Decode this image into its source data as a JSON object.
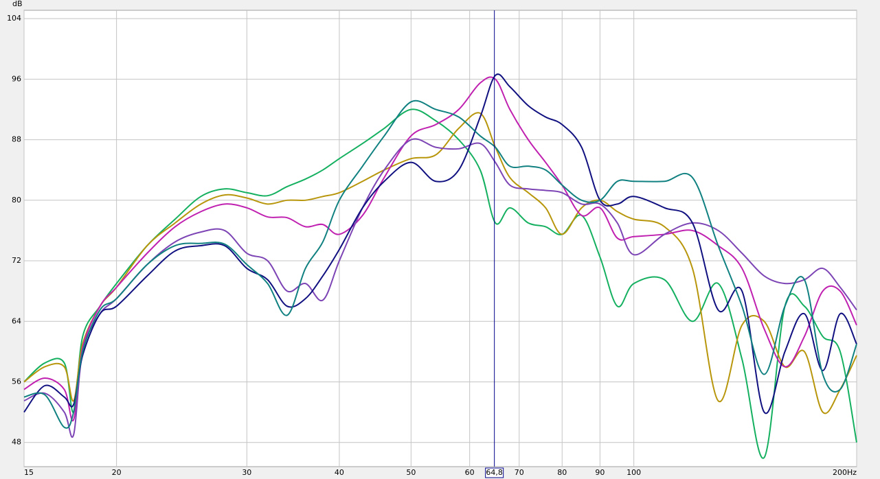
{
  "chart_data": {
    "type": "line",
    "y_label": "dB",
    "xscale": "log",
    "grid": true,
    "xlim": [
      15,
      200
    ],
    "ylim": [
      44.8,
      105.1
    ],
    "xticks": [
      15,
      20,
      30,
      40,
      50,
      60,
      70,
      80,
      90,
      100,
      {
        "value": 200,
        "label": "200Hz"
      }
    ],
    "yticks": [
      48,
      56,
      64,
      72,
      80,
      88,
      96,
      104
    ],
    "cursor": {
      "value": 64.8,
      "label": "64,8",
      "color": "#00008b"
    },
    "x": [
      15,
      16,
      17,
      17.5,
      18,
      19,
      20,
      22,
      24,
      26,
      28,
      30,
      32,
      34,
      36,
      38,
      40,
      43,
      46,
      50,
      54,
      58,
      62,
      65,
      68,
      72,
      76,
      80,
      85,
      90,
      95,
      100,
      110,
      120,
      130,
      140,
      150,
      160,
      170,
      180,
      190,
      200
    ],
    "series": [
      {
        "color": "#14b060",
        "values": [
          56,
          58.5,
          58.5,
          52,
          62,
          66,
          69,
          74,
          77.5,
          80.5,
          81.5,
          81,
          80.6,
          81.8,
          82.8,
          84,
          85.5,
          87.5,
          89.5,
          92,
          90.5,
          88,
          84,
          77,
          79,
          77,
          76.5,
          75.5,
          78,
          72.5,
          66,
          69,
          69.5,
          64,
          69,
          59,
          46,
          66,
          66,
          62,
          60,
          48
        ]
      },
      {
        "color": "#b8960c",
        "values": [
          56,
          58,
          58,
          53.5,
          61,
          66,
          68.5,
          74,
          77,
          79.5,
          80.7,
          80.3,
          79.5,
          80,
          80,
          80.5,
          81,
          82.5,
          84,
          85.5,
          86,
          89.5,
          91.5,
          87,
          83,
          81,
          79,
          75.5,
          79,
          80,
          78.5,
          77.5,
          76.5,
          71,
          53.5,
          63.5,
          64,
          58,
          60,
          52,
          55,
          59.5
        ]
      },
      {
        "color": "#c020b0",
        "values": [
          55,
          56.5,
          55,
          51,
          60.5,
          66,
          68.5,
          73,
          76.5,
          78.5,
          79.5,
          79,
          77.8,
          77.7,
          76.5,
          76.8,
          75.5,
          78,
          83,
          88.5,
          90,
          92,
          95.5,
          96,
          92,
          88,
          85,
          82,
          78,
          79,
          75,
          75.2,
          75.5,
          76,
          74,
          71,
          63,
          58,
          62,
          68,
          68,
          63.5
        ]
      },
      {
        "color": "#7c44b4",
        "values": [
          53.5,
          54.5,
          52,
          49,
          60,
          65,
          67,
          71.5,
          74.5,
          75.8,
          76,
          73,
          72,
          68,
          69,
          66.8,
          72,
          79,
          84,
          88,
          87,
          86.8,
          87.5,
          85,
          82,
          81.5,
          81.3,
          81,
          79.5,
          79.5,
          77,
          72.8,
          75.5,
          77,
          76,
          73,
          70,
          69,
          69.5,
          71,
          68.5,
          65.5
        ]
      },
      {
        "color": "#101080",
        "values": [
          52,
          55.5,
          54,
          53,
          59.5,
          65,
          66,
          70,
          73.3,
          74,
          74,
          71,
          69.5,
          66,
          67,
          70,
          73.5,
          79,
          82.5,
          85,
          82.5,
          84,
          91,
          96.5,
          95,
          92.5,
          91,
          90,
          87,
          80,
          79.5,
          80.5,
          79,
          77,
          65.5,
          68,
          52,
          60,
          65,
          57.5,
          65,
          61
        ]
      },
      {
        "color": "#108080",
        "values": [
          54,
          54.3,
          50,
          52,
          60,
          65.5,
          67,
          71.5,
          74,
          74.3,
          74.2,
          71.5,
          69,
          64.8,
          71,
          74.5,
          80,
          84.5,
          88.5,
          93,
          92,
          91,
          88.5,
          87,
          84.5,
          84.5,
          84,
          82,
          80,
          80,
          82.5,
          82.5,
          82.5,
          83,
          74,
          66,
          57,
          66,
          69.5,
          57,
          55,
          61
        ]
      }
    ]
  }
}
